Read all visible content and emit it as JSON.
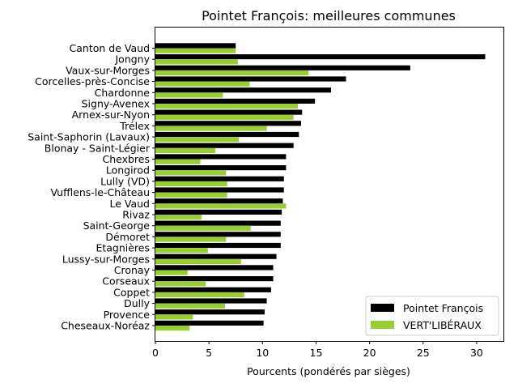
{
  "chart_data": {
    "type": "bar",
    "orientation": "horizontal",
    "title": "Pointet François: meilleures communes",
    "xlabel": "Pourcents (pondérés par sièges)",
    "ylabel": "",
    "xlim": [
      0,
      32.5
    ],
    "xticks": [
      0,
      5,
      10,
      15,
      20,
      25,
      30
    ],
    "grid": false,
    "legend_position": "lower-right",
    "categories": [
      "Canton de Vaud",
      "Jongny",
      "Vaux-sur-Morges",
      "Corcelles-près-Concise",
      "Chardonne",
      "Signy-Avenex",
      "Arnex-sur-Nyon",
      "Trélex",
      "Saint-Saphorin (Lavaux)",
      "Blonay - Saint-Légier",
      "Chexbres",
      "Longirod",
      "Lully (VD)",
      "Vufflens-le-Château",
      "Le Vaud",
      "Rivaz",
      "Saint-George",
      "Démoret",
      "Etagnières",
      "Lussy-sur-Morges",
      "Cronay",
      "Corseaux",
      "Coppet",
      "Dully",
      "Provence",
      "Cheseaux-Noréaz"
    ],
    "series": [
      {
        "name": "Pointet François",
        "color": "#000000",
        "values": [
          7.5,
          30.8,
          23.8,
          17.8,
          16.4,
          14.9,
          13.7,
          13.6,
          13.4,
          12.9,
          12.2,
          12.2,
          12.0,
          12.0,
          11.9,
          11.8,
          11.7,
          11.7,
          11.7,
          11.3,
          11.0,
          11.0,
          10.8,
          10.4,
          10.2,
          10.1
        ]
      },
      {
        "name": "VERT'LIBÉRAUX",
        "color": "#9acd32",
        "values": [
          7.5,
          7.7,
          14.3,
          8.8,
          6.3,
          13.3,
          12.9,
          10.4,
          7.8,
          5.6,
          4.2,
          6.6,
          6.7,
          6.7,
          12.2,
          4.3,
          8.9,
          6.6,
          4.9,
          8.0,
          3.0,
          4.7,
          8.3,
          6.5,
          3.5,
          3.2
        ]
      }
    ]
  }
}
